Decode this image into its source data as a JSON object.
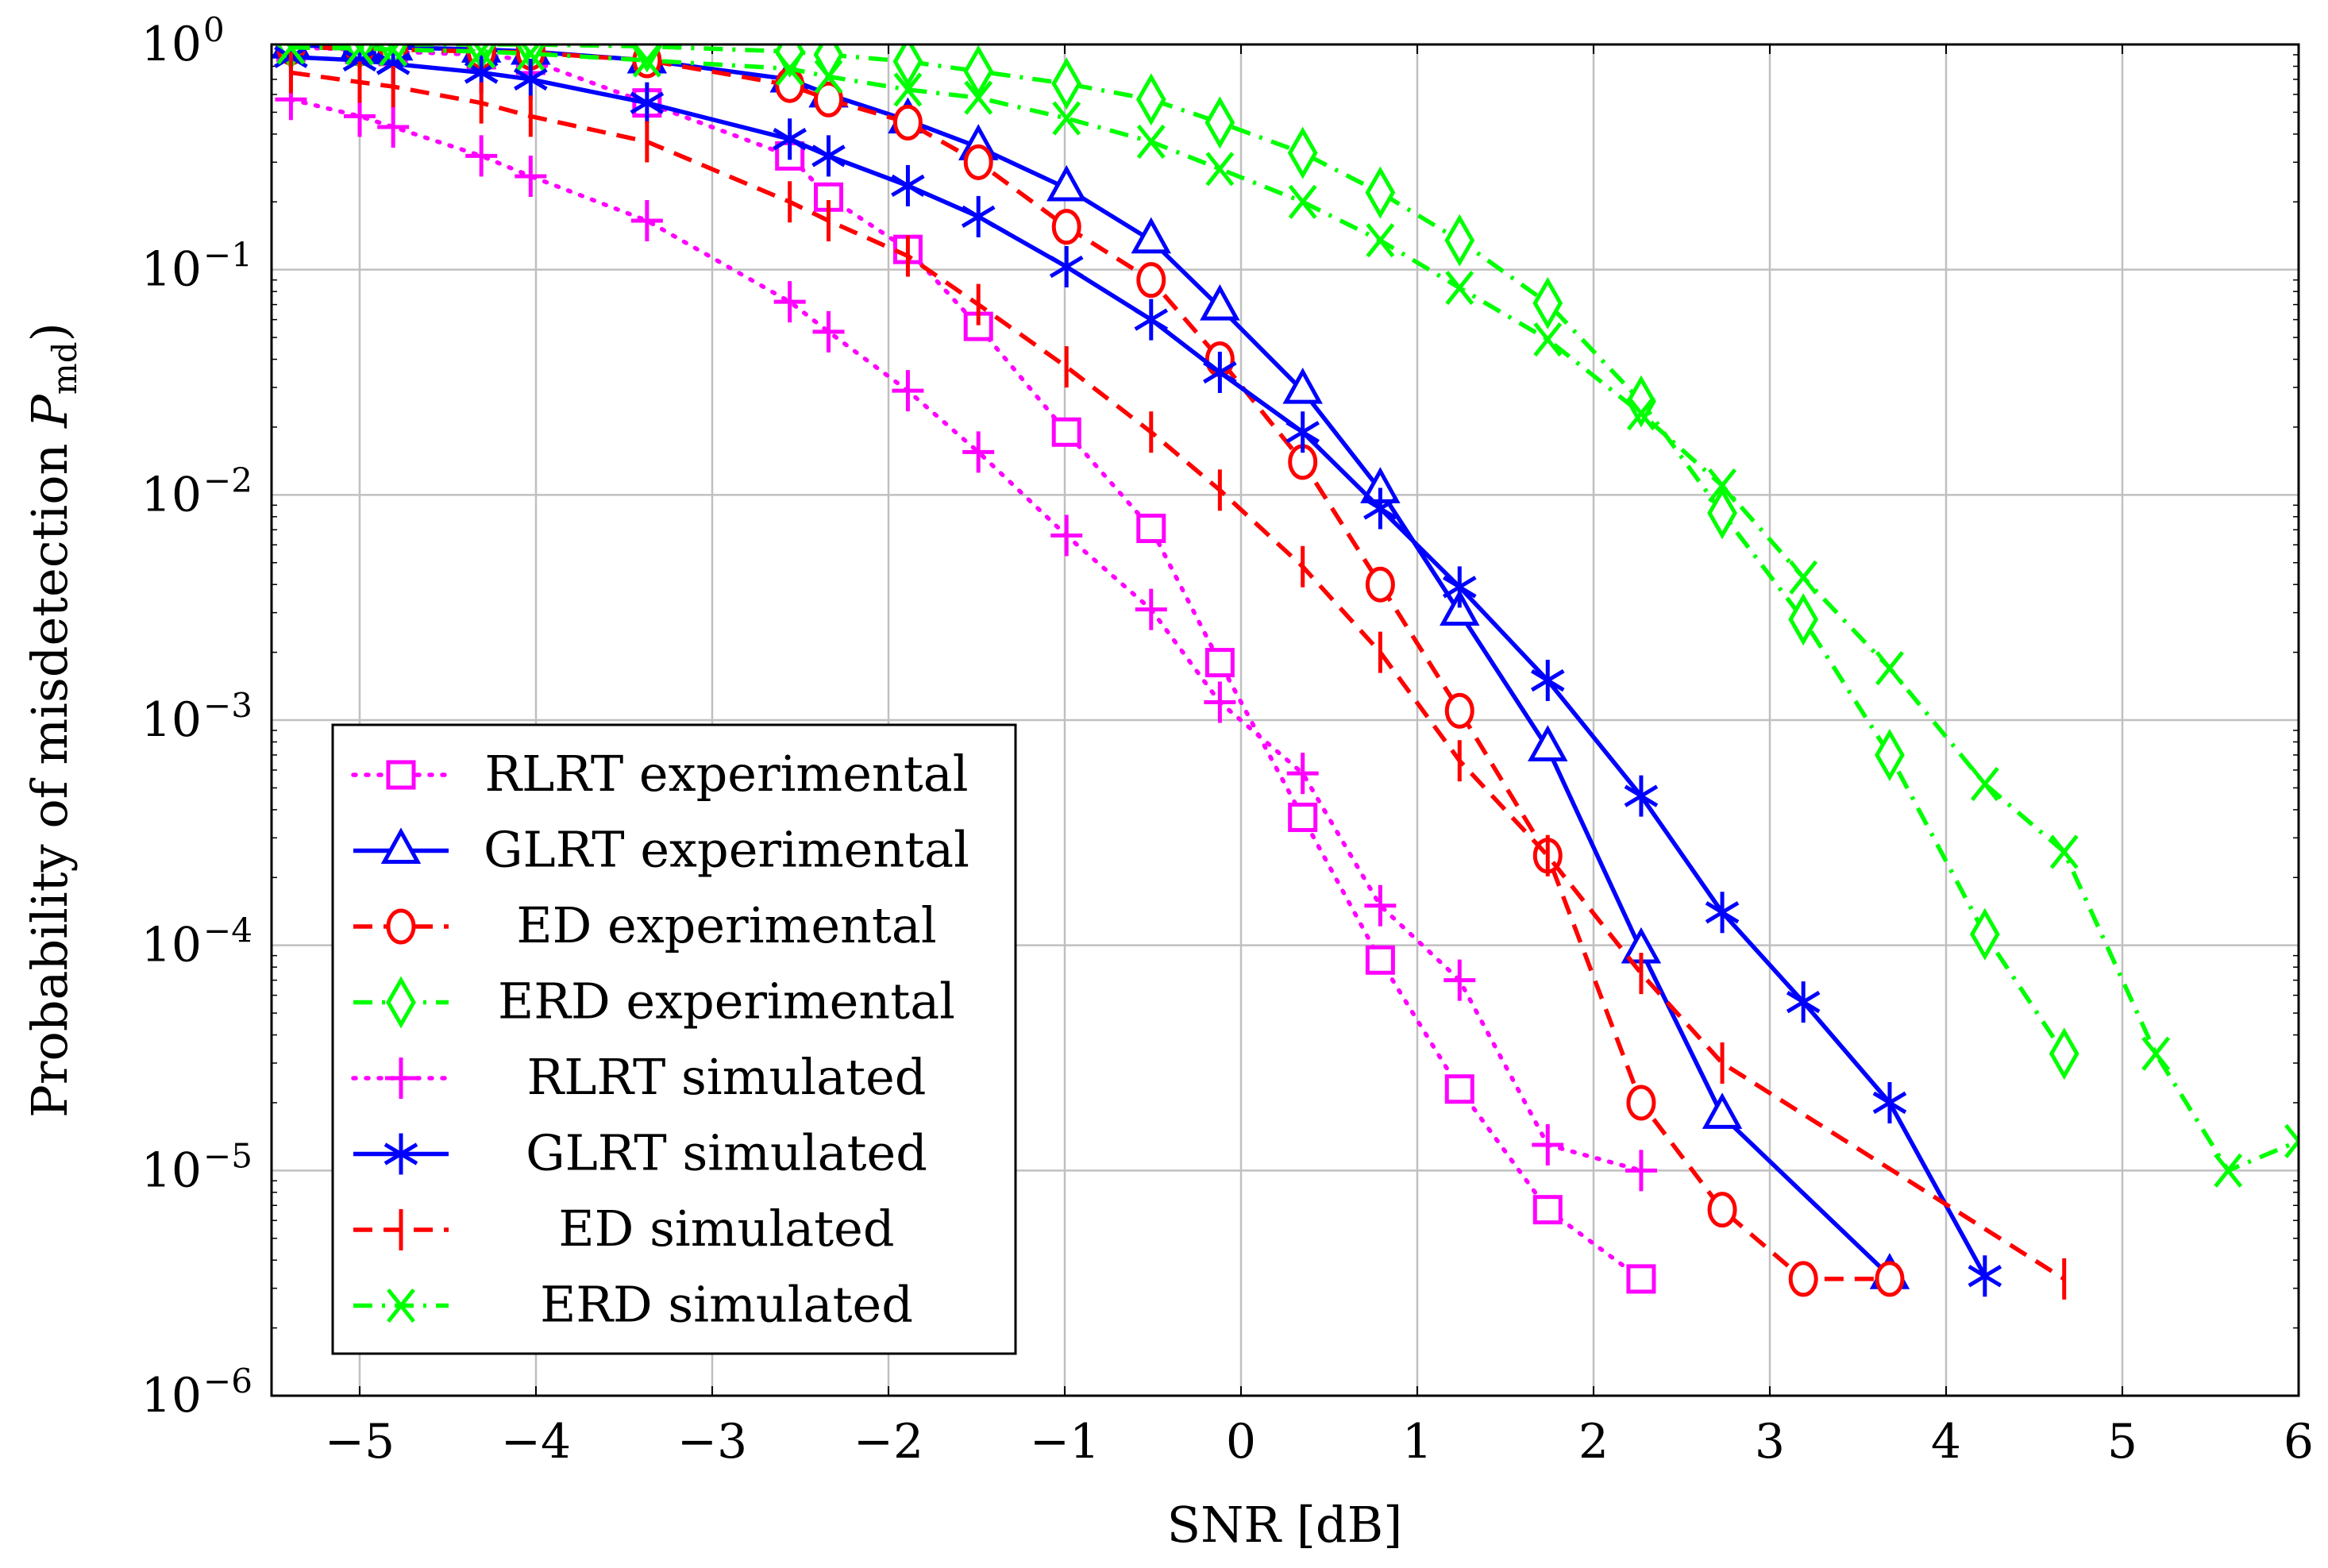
{
  "chart_data": {
    "type": "line",
    "title": "",
    "xlabel": "SNR [dB]",
    "ylabel": "Probability of misdetection P_md",
    "ylabel_main": "Probability of misdetection ",
    "ylabel_sym": "P",
    "ylabel_sub": "md",
    "xlim": [
      -5.5,
      6
    ],
    "ylim": [
      1e-06,
      1
    ],
    "yscale": "log",
    "grid": true,
    "legend_position": "bottom-left",
    "x_ticks": [
      -5,
      -4,
      -3,
      -2,
      -1,
      0,
      1,
      2,
      3,
      4,
      5,
      6
    ],
    "x_tick_labels": [
      "−5",
      "−4",
      "−3",
      "−2",
      "−1",
      "0",
      "1",
      "2",
      "3",
      "4",
      "5",
      "6"
    ],
    "y_ticks": [
      0,
      -1,
      -2,
      -3,
      -4,
      -5,
      -6
    ],
    "y_tick_labels": [
      "10",
      "10",
      "10",
      "10",
      "10",
      "10",
      "10"
    ],
    "y_tick_exponents": [
      "0",
      "−1",
      "−2",
      "−3",
      "−4",
      "−5",
      "−6"
    ],
    "series": [
      {
        "name": "RLRT experimental",
        "color": "#ff00ff",
        "dash": "dotted",
        "marker": "square",
        "x": [
          -5.39,
          -5,
          -4.81,
          -4.31,
          -4.03,
          -3.37,
          -2.56,
          -2.34,
          -1.89,
          -1.49,
          -0.99,
          -0.51,
          -0.12,
          0.35,
          0.79,
          1.24,
          1.74,
          2.27
        ],
        "y": [
          0.97,
          0.95,
          0.93,
          0.9,
          0.85,
          0.55,
          0.32,
          0.21,
          0.123,
          0.056,
          0.019,
          0.0071,
          0.0018,
          0.00037,
          8.6e-05,
          2.3e-05,
          6.7e-06,
          3.3e-06
        ]
      },
      {
        "name": "GLRT experimental",
        "color": "#0000ff",
        "dash": "solid",
        "marker": "triangle",
        "x": [
          -5.39,
          -5,
          -4.81,
          -4.31,
          -4.03,
          -3.37,
          -2.56,
          -2.34,
          -1.89,
          -1.49,
          -0.99,
          -0.51,
          -0.12,
          0.35,
          0.79,
          1.24,
          1.74,
          2.27,
          2.73,
          3.68
        ],
        "y": [
          0.99,
          0.98,
          0.97,
          0.95,
          0.93,
          0.85,
          0.7,
          0.6,
          0.46,
          0.35,
          0.23,
          0.135,
          0.068,
          0.029,
          0.0105,
          0.003,
          0.00075,
          9.5e-05,
          1.75e-05,
          3.4e-06
        ]
      },
      {
        "name": "ED experimental",
        "color": "#ff0000",
        "dash": "dashed",
        "marker": "circle",
        "x": [
          -5.39,
          -5,
          -4.81,
          -4.31,
          -4.03,
          -3.37,
          -2.56,
          -2.34,
          -1.89,
          -1.49,
          -0.99,
          -0.51,
          -0.12,
          0.35,
          0.79,
          1.24,
          1.74,
          2.27,
          2.73,
          3.19,
          3.68
        ],
        "y": [
          0.97,
          0.96,
          0.95,
          0.93,
          0.92,
          0.85,
          0.66,
          0.57,
          0.45,
          0.3,
          0.155,
          0.09,
          0.04,
          0.014,
          0.004,
          0.0011,
          0.00025,
          2e-05,
          6.7e-06,
          3.3e-06,
          3.3e-06
        ]
      },
      {
        "name": "ERD experimental",
        "color": "#00ff00",
        "dash": "dashdot",
        "marker": "diamond",
        "x": [
          -5.39,
          -5,
          -4.81,
          -4.31,
          -4.03,
          -3.37,
          -2.56,
          -2.34,
          -1.89,
          -1.49,
          -0.99,
          -0.51,
          -0.12,
          0.35,
          0.79,
          1.24,
          1.74,
          2.27,
          2.73,
          3.19,
          3.68,
          4.22,
          4.67
        ],
        "y": [
          1.0,
          1.0,
          1.0,
          1.0,
          1.0,
          0.98,
          0.93,
          0.9,
          0.84,
          0.76,
          0.67,
          0.57,
          0.45,
          0.33,
          0.22,
          0.135,
          0.071,
          0.026,
          0.0083,
          0.0028,
          0.0007,
          0.000112,
          3.3e-05
        ]
      },
      {
        "name": "RLRT simulated",
        "color": "#ff00ff",
        "dash": "dotted",
        "marker": "plus",
        "x": [
          -5.39,
          -5,
          -4.81,
          -4.31,
          -4.03,
          -3.37,
          -2.56,
          -2.34,
          -1.89,
          -1.49,
          -0.99,
          -0.51,
          -0.12,
          0.35,
          0.79,
          1.24,
          1.74,
          2.27
        ],
        "y": [
          0.57,
          0.48,
          0.43,
          0.32,
          0.26,
          0.165,
          0.072,
          0.053,
          0.029,
          0.0155,
          0.0066,
          0.0031,
          0.0012,
          0.00058,
          0.00015,
          7e-05,
          1.3e-05,
          1e-05
        ]
      },
      {
        "name": "GLRT simulated",
        "color": "#0000ff",
        "dash": "solid",
        "marker": "asterisk",
        "x": [
          -5.39,
          -5,
          -4.81,
          -4.31,
          -4.03,
          -3.37,
          -2.56,
          -2.34,
          -1.89,
          -1.49,
          -0.99,
          -0.51,
          -0.12,
          0.35,
          0.79,
          1.24,
          1.74,
          2.27,
          2.73,
          3.19,
          3.68,
          4.22
        ],
        "y": [
          0.88,
          0.85,
          0.82,
          0.75,
          0.7,
          0.55,
          0.38,
          0.32,
          0.236,
          0.172,
          0.103,
          0.06,
          0.035,
          0.019,
          0.0087,
          0.0039,
          0.0015,
          0.00046,
          0.00014,
          5.6e-05,
          2e-05,
          3.4e-06
        ]
      },
      {
        "name": "ED simulated",
        "color": "#ff0000",
        "dash": "dashed",
        "marker": "vbar",
        "x": [
          -5.39,
          -5,
          -4.81,
          -4.31,
          -4.03,
          -3.37,
          -2.56,
          -2.34,
          -1.89,
          -1.49,
          -0.99,
          -0.51,
          -0.12,
          0.35,
          0.79,
          1.24,
          1.74,
          2.27,
          2.73,
          4.67
        ],
        "y": [
          0.75,
          0.68,
          0.65,
          0.55,
          0.48,
          0.37,
          0.2,
          0.165,
          0.115,
          0.07,
          0.037,
          0.019,
          0.0105,
          0.0048,
          0.002,
          0.00066,
          0.00025,
          7.5e-05,
          3e-05,
          3.3e-06
        ]
      },
      {
        "name": "ERD simulated",
        "color": "#00ff00",
        "dash": "dashdot",
        "marker": "cross",
        "x": [
          -5.39,
          -5,
          -4.81,
          -4.31,
          -4.03,
          -3.37,
          -2.56,
          -2.34,
          -1.89,
          -1.49,
          -0.99,
          -0.51,
          -0.12,
          0.35,
          0.79,
          1.24,
          1.74,
          2.27,
          2.73,
          3.19,
          3.68,
          4.22,
          4.67,
          5.19,
          5.6,
          6.0
        ],
        "y": [
          0.97,
          0.96,
          0.95,
          0.93,
          0.91,
          0.85,
          0.78,
          0.72,
          0.63,
          0.58,
          0.47,
          0.37,
          0.28,
          0.2,
          0.135,
          0.083,
          0.049,
          0.023,
          0.011,
          0.0043,
          0.0017,
          0.00052,
          0.00026,
          3.3e-05,
          1e-05,
          1.35e-05
        ]
      }
    ]
  }
}
